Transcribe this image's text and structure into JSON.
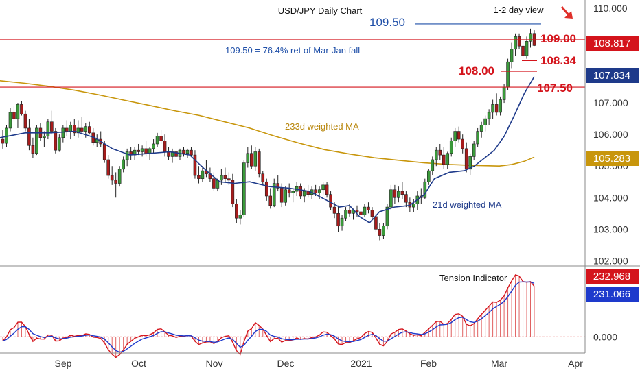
{
  "chart_data": {
    "type": "candlestick",
    "title": "USD/JPY Daily Chart",
    "subtitle": "1-2 day view",
    "price_axis": {
      "ylim": [
        101.9,
        110.15
      ],
      "ticks": [
        "110.000",
        "109.000",
        "108.000",
        "107.000",
        "106.000",
        "105.000",
        "104.000",
        "103.000",
        "102.000"
      ],
      "tick_values": [
        110,
        109,
        108,
        107,
        106,
        105,
        104,
        103,
        102
      ]
    },
    "x_axis": {
      "labels": [
        "Sep",
        "Oct",
        "Nov",
        "Dec",
        "2021",
        "Feb",
        "Mar",
        "Apr"
      ],
      "label_days": [
        23,
        53,
        84,
        114,
        145,
        176,
        204,
        235
      ]
    },
    "current_price": {
      "value": 108.817,
      "label": "108.817",
      "color": "#d4141c"
    },
    "ma_21": {
      "name": "21d weighted MA",
      "last_label": "107.834",
      "last_value": 107.834,
      "color": "#1e3a8a",
      "points": [
        [
          0,
          105.9
        ],
        [
          10,
          106.05
        ],
        [
          20,
          106.05
        ],
        [
          30,
          106.1
        ],
        [
          38,
          105.9
        ],
        [
          45,
          105.55
        ],
        [
          52,
          105.35
        ],
        [
          60,
          105.4
        ],
        [
          68,
          105.45
        ],
        [
          76,
          105.35
        ],
        [
          82,
          104.9
        ],
        [
          88,
          104.5
        ],
        [
          94,
          104.45
        ],
        [
          100,
          104.5
        ],
        [
          108,
          104.35
        ],
        [
          116,
          104.3
        ],
        [
          124,
          104.2
        ],
        [
          130,
          103.95
        ],
        [
          136,
          103.7
        ],
        [
          140,
          103.75
        ],
        [
          144,
          103.4
        ],
        [
          148,
          103.2
        ],
        [
          152,
          103.55
        ],
        [
          158,
          103.7
        ],
        [
          164,
          103.75
        ],
        [
          170,
          104.1
        ],
        [
          174,
          104.6
        ],
        [
          180,
          104.8
        ],
        [
          186,
          104.85
        ],
        [
          190,
          105.0
        ],
        [
          194,
          105.25
        ],
        [
          198,
          105.5
        ],
        [
          202,
          105.95
        ],
        [
          206,
          106.6
        ],
        [
          210,
          107.3
        ],
        [
          214,
          107.834
        ]
      ]
    },
    "ma_233": {
      "name": "233d weighted MA",
      "last_label": "105.283",
      "last_value": 105.283,
      "color": "#c8960c",
      "points": [
        [
          0,
          107.7
        ],
        [
          10,
          107.62
        ],
        [
          20,
          107.52
        ],
        [
          30,
          107.4
        ],
        [
          40,
          107.25
        ],
        [
          50,
          107.08
        ],
        [
          60,
          106.92
        ],
        [
          70,
          106.75
        ],
        [
          80,
          106.6
        ],
        [
          90,
          106.4
        ],
        [
          100,
          106.2
        ],
        [
          110,
          105.95
        ],
        [
          120,
          105.72
        ],
        [
          130,
          105.52
        ],
        [
          140,
          105.38
        ],
        [
          150,
          105.26
        ],
        [
          160,
          105.18
        ],
        [
          170,
          105.1
        ],
        [
          180,
          105.05
        ],
        [
          190,
          105.02
        ],
        [
          200,
          105.0
        ],
        [
          205,
          105.05
        ],
        [
          210,
          105.15
        ],
        [
          214,
          105.283
        ]
      ]
    },
    "candles": [
      [
        1,
        105.85,
        106.15,
        105.55,
        105.72
      ],
      [
        2,
        105.72,
        106.3,
        105.6,
        106.2
      ],
      [
        3,
        106.2,
        106.85,
        106.1,
        106.7
      ],
      [
        4,
        106.7,
        106.9,
        106.4,
        106.5
      ],
      [
        5,
        106.5,
        107.0,
        106.2,
        106.95
      ],
      [
        6,
        106.95,
        107.05,
        106.6,
        106.65
      ],
      [
        7,
        106.65,
        106.75,
        106.1,
        106.2
      ],
      [
        8,
        106.2,
        106.5,
        105.5,
        105.65
      ],
      [
        9,
        105.65,
        105.9,
        105.25,
        105.4
      ],
      [
        10,
        105.4,
        106.3,
        105.35,
        106.2
      ],
      [
        11,
        106.2,
        106.35,
        105.8,
        105.9
      ],
      [
        12,
        105.9,
        106.1,
        105.6,
        105.95
      ],
      [
        13,
        105.95,
        106.5,
        105.85,
        106.4
      ],
      [
        14,
        106.4,
        106.75,
        106.0,
        106.1
      ],
      [
        15,
        106.1,
        106.2,
        105.4,
        105.5
      ],
      [
        16,
        105.5,
        106.0,
        105.45,
        105.9
      ],
      [
        17,
        105.9,
        106.3,
        105.75,
        106.2
      ],
      [
        18,
        106.2,
        106.45,
        105.95,
        106.1
      ],
      [
        19,
        106.1,
        106.4,
        105.85,
        106.3
      ],
      [
        20,
        106.3,
        106.5,
        105.95,
        106.05
      ],
      [
        21,
        106.05,
        106.45,
        105.9,
        106.2
      ],
      [
        22,
        106.2,
        106.55,
        106.0,
        106.1
      ],
      [
        23,
        106.1,
        106.35,
        105.9,
        106.25
      ],
      [
        24,
        106.25,
        106.4,
        106.0,
        106.05
      ],
      [
        25,
        106.05,
        106.2,
        105.65,
        105.75
      ],
      [
        26,
        105.75,
        106.0,
        105.6,
        105.85
      ],
      [
        27,
        105.85,
        106.1,
        105.6,
        105.7
      ],
      [
        28,
        105.7,
        105.8,
        105.1,
        105.2
      ],
      [
        29,
        105.2,
        105.35,
        104.6,
        104.7
      ],
      [
        30,
        104.7,
        105.0,
        104.4,
        104.55
      ],
      [
        31,
        104.55,
        104.8,
        104.0,
        104.45
      ],
      [
        32,
        104.45,
        105.0,
        104.35,
        104.9
      ],
      [
        33,
        104.9,
        105.3,
        104.8,
        105.2
      ],
      [
        34,
        105.2,
        105.55,
        105.0,
        105.45
      ],
      [
        35,
        105.45,
        105.6,
        105.2,
        105.35
      ],
      [
        36,
        105.35,
        105.6,
        105.2,
        105.5
      ],
      [
        37,
        105.5,
        105.7,
        105.35,
        105.45
      ],
      [
        38,
        105.45,
        105.65,
        105.3,
        105.55
      ],
      [
        39,
        105.55,
        105.8,
        105.3,
        105.4
      ],
      [
        40,
        105.4,
        105.6,
        105.2,
        105.55
      ],
      [
        41,
        105.55,
        105.85,
        105.4,
        105.7
      ],
      [
        42,
        105.7,
        106.05,
        105.6,
        105.95
      ],
      [
        43,
        105.95,
        106.15,
        105.7,
        105.8
      ],
      [
        44,
        105.8,
        106.0,
        105.3,
        105.45
      ],
      [
        45,
        105.45,
        105.6,
        105.2,
        105.3
      ],
      [
        46,
        105.3,
        105.55,
        105.1,
        105.45
      ],
      [
        47,
        105.45,
        105.6,
        105.2,
        105.3
      ],
      [
        48,
        105.3,
        105.55,
        105.2,
        105.5
      ],
      [
        49,
        105.5,
        105.6,
        105.3,
        105.4
      ],
      [
        50,
        105.4,
        105.55,
        105.25,
        105.5
      ],
      [
        51,
        105.5,
        105.6,
        105.3,
        105.35
      ],
      [
        52,
        105.35,
        105.5,
        104.6,
        104.7
      ],
      [
        53,
        104.7,
        105.0,
        104.45,
        104.6
      ],
      [
        54,
        104.6,
        105.0,
        104.5,
        104.85
      ],
      [
        55,
        104.85,
        105.2,
        104.65,
        104.75
      ],
      [
        56,
        104.75,
        104.95,
        104.5,
        104.6
      ],
      [
        57,
        104.6,
        104.8,
        104.2,
        104.3
      ],
      [
        58,
        104.3,
        104.6,
        104.2,
        104.55
      ],
      [
        59,
        104.55,
        104.9,
        104.4,
        104.7
      ],
      [
        60,
        104.7,
        104.95,
        104.5,
        104.6
      ],
      [
        61,
        104.6,
        104.8,
        104.4,
        104.55
      ],
      [
        62,
        104.55,
        104.75,
        103.7,
        103.8
      ],
      [
        63,
        103.8,
        103.95,
        103.2,
        103.35
      ],
      [
        64,
        103.35,
        103.6,
        103.15,
        103.45
      ],
      [
        65,
        103.45,
        105.2,
        103.4,
        105.1
      ],
      [
        66,
        105.1,
        105.6,
        104.95,
        105.4
      ],
      [
        67,
        105.4,
        105.65,
        104.9,
        105.0
      ],
      [
        68,
        105.0,
        105.6,
        104.85,
        105.45
      ],
      [
        69,
        105.45,
        105.55,
        104.65,
        104.75
      ],
      [
        70,
        104.75,
        104.85,
        104.4,
        104.5
      ],
      [
        71,
        104.5,
        104.6,
        103.9,
        104.05
      ],
      [
        72,
        104.05,
        104.3,
        103.65,
        103.75
      ],
      [
        73,
        103.75,
        104.6,
        103.7,
        104.45
      ],
      [
        74,
        104.45,
        104.7,
        104.2,
        104.3
      ],
      [
        75,
        104.3,
        104.45,
        103.7,
        103.85
      ],
      [
        76,
        103.85,
        104.35,
        103.75,
        104.25
      ],
      [
        77,
        104.25,
        104.45,
        104.0,
        104.15
      ],
      [
        78,
        104.15,
        104.3,
        103.85,
        104.2
      ],
      [
        79,
        104.2,
        104.5,
        104.05,
        104.35
      ],
      [
        80,
        104.35,
        104.45,
        103.95,
        104.05
      ],
      [
        81,
        104.05,
        104.3,
        103.85,
        104.2
      ],
      [
        82,
        104.2,
        104.4,
        104.0,
        104.1
      ],
      [
        83,
        104.1,
        104.35,
        103.95,
        104.25
      ],
      [
        84,
        104.25,
        104.4,
        104.05,
        104.15
      ],
      [
        85,
        104.15,
        104.35,
        103.95,
        104.25
      ],
      [
        86,
        104.25,
        104.5,
        104.1,
        104.4
      ],
      [
        87,
        104.4,
        104.5,
        104.0,
        104.1
      ],
      [
        88,
        104.1,
        104.2,
        103.6,
        103.7
      ],
      [
        89,
        103.7,
        103.85,
        103.35,
        103.5
      ],
      [
        90,
        103.5,
        103.75,
        102.9,
        103.1
      ],
      [
        91,
        103.1,
        103.45,
        102.95,
        103.35
      ],
      [
        92,
        103.35,
        103.7,
        103.25,
        103.6
      ],
      [
        93,
        103.6,
        103.8,
        103.4,
        103.5
      ],
      [
        94,
        103.5,
        103.65,
        103.3,
        103.6
      ],
      [
        95,
        103.6,
        103.75,
        103.4,
        103.55
      ],
      [
        96,
        103.55,
        103.7,
        103.3,
        103.45
      ],
      [
        97,
        103.45,
        103.8,
        103.4,
        103.7
      ],
      [
        98,
        103.7,
        103.85,
        103.5,
        103.6
      ],
      [
        99,
        103.6,
        103.7,
        103.3,
        103.4
      ],
      [
        100,
        103.4,
        103.5,
        102.9,
        103.0
      ],
      [
        101,
        103.0,
        103.2,
        102.65,
        102.8
      ],
      [
        102,
        102.8,
        103.2,
        102.7,
        103.1
      ],
      [
        103,
        103.1,
        103.8,
        103.0,
        103.7
      ],
      [
        104,
        103.7,
        104.4,
        103.6,
        104.25
      ],
      [
        105,
        104.25,
        104.4,
        103.8,
        104.0
      ],
      [
        106,
        104.0,
        104.35,
        103.85,
        104.2
      ],
      [
        107,
        104.2,
        104.5,
        103.95,
        104.1
      ],
      [
        108,
        104.1,
        104.2,
        103.7,
        103.85
      ],
      [
        109,
        103.85,
        104.0,
        103.55,
        103.7
      ],
      [
        110,
        103.7,
        103.95,
        103.55,
        103.8
      ],
      [
        111,
        103.8,
        104.2,
        103.6,
        104.05
      ],
      [
        112,
        104.05,
        104.3,
        103.8,
        104.0
      ],
      [
        113,
        104.0,
        104.6,
        103.95,
        104.5
      ],
      [
        114,
        104.5,
        104.9,
        104.4,
        104.85
      ],
      [
        115,
        104.85,
        105.3,
        104.7,
        105.2
      ],
      [
        116,
        105.2,
        105.6,
        105.0,
        105.5
      ],
      [
        117,
        105.5,
        105.7,
        105.2,
        105.35
      ],
      [
        118,
        105.35,
        105.6,
        104.9,
        105.05
      ],
      [
        119,
        105.05,
        105.45,
        104.9,
        105.4
      ],
      [
        120,
        105.4,
        105.9,
        105.3,
        105.8
      ],
      [
        121,
        105.8,
        106.2,
        105.6,
        106.1
      ],
      [
        122,
        106.1,
        106.25,
        105.75,
        105.85
      ],
      [
        123,
        105.85,
        106.0,
        105.4,
        105.55
      ],
      [
        124,
        105.55,
        105.75,
        104.8,
        104.9
      ],
      [
        125,
        104.9,
        105.4,
        104.7,
        105.3
      ],
      [
        126,
        105.3,
        105.8,
        105.2,
        105.7
      ],
      [
        127,
        105.7,
        106.2,
        105.6,
        106.1
      ],
      [
        128,
        106.1,
        106.4,
        105.9,
        106.3
      ],
      [
        129,
        106.3,
        106.6,
        106.1,
        106.5
      ],
      [
        130,
        106.5,
        106.8,
        106.3,
        106.7
      ],
      [
        131,
        106.7,
        107.1,
        106.5,
        106.95
      ],
      [
        132,
        106.95,
        107.3,
        106.6,
        106.7
      ],
      [
        133,
        106.7,
        107.2,
        106.6,
        107.1
      ],
      [
        134,
        107.1,
        107.6,
        107.0,
        107.5
      ],
      [
        135,
        107.5,
        108.4,
        107.4,
        108.3
      ],
      [
        136,
        108.3,
        108.9,
        108.1,
        108.7
      ],
      [
        137,
        108.7,
        109.2,
        108.5,
        109.1
      ],
      [
        138,
        109.1,
        109.2,
        108.7,
        108.8
      ],
      [
        139,
        108.8,
        109.0,
        108.4,
        108.5
      ],
      [
        140,
        108.5,
        109.1,
        108.4,
        108.95
      ],
      [
        141,
        108.95,
        109.35,
        108.75,
        109.2
      ],
      [
        142,
        109.2,
        109.3,
        108.8,
        108.817
      ]
    ],
    "tension_indicator": {
      "name": "Tension Indicator",
      "ylim": [
        -0.3,
        1.55
      ],
      "ticks": [
        "0.000"
      ],
      "red_label": "232.968",
      "red_value": 232.968,
      "red_color": "#d4141c",
      "blue_label": "231.066",
      "blue_value": 231.066,
      "blue_color": "#1e3acc"
    },
    "annotations": [
      {
        "text": "109.50",
        "level": 109.5,
        "color": "#1f4fa8"
      },
      {
        "text": "109.00",
        "level": 109.0,
        "color": "#d4141c"
      },
      {
        "text": "108.34",
        "level": 108.34,
        "color": "#d4141c"
      },
      {
        "text": "108.00",
        "level": 108.0,
        "color": "#d4141c"
      },
      {
        "text": "107.50",
        "level": 107.5,
        "color": "#d4141c"
      },
      {
        "text": "109.50 = 76.4% ret of Mar-Jan fall",
        "color": "#1f4fa8"
      }
    ],
    "grid": false
  }
}
